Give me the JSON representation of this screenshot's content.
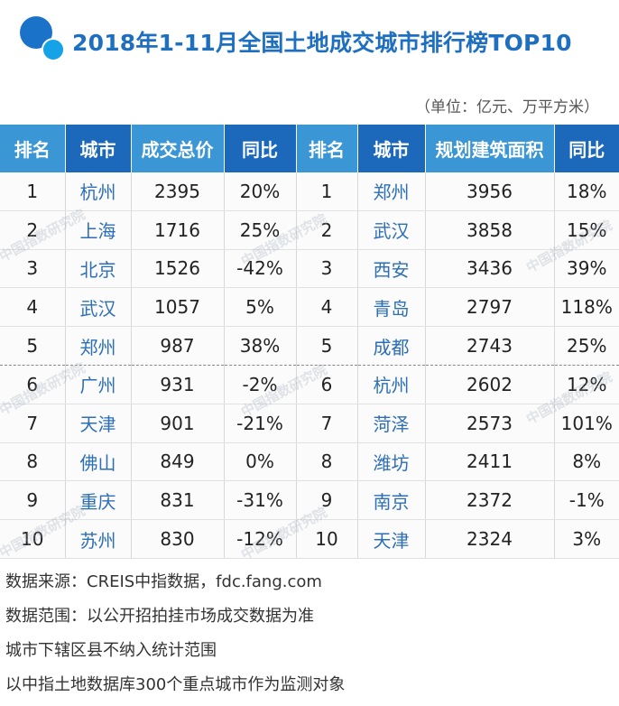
{
  "title": "2018年1-11月全国土地成交城市排行榜TOP10",
  "unit": "（单位：亿元、万平方米）",
  "headers": {
    "rank_left": "排名",
    "city_left": "城市",
    "value_left": "成交总价",
    "yoy_left": "同比",
    "rank_right": "排名",
    "city_right": "城市",
    "value_right": "规划建筑面积",
    "yoy_right": "同比"
  },
  "rows": [
    {
      "rank_l": "1",
      "city_l": "杭州",
      "val_l": "2395",
      "yoy_l": "20%",
      "rank_r": "1",
      "city_r": "郑州",
      "val_r": "3956",
      "yoy_r": "18%"
    },
    {
      "rank_l": "2",
      "city_l": "上海",
      "val_l": "1716",
      "yoy_l": "25%",
      "rank_r": "2",
      "city_r": "武汉",
      "val_r": "3858",
      "yoy_r": "15%"
    },
    {
      "rank_l": "3",
      "city_l": "北京",
      "val_l": "1526",
      "yoy_l": "-42%",
      "rank_r": "3",
      "city_r": "西安",
      "val_r": "3436",
      "yoy_r": "39%"
    },
    {
      "rank_l": "4",
      "city_l": "武汉",
      "val_l": "1057",
      "yoy_l": "5%",
      "rank_r": "4",
      "city_r": "青岛",
      "val_r": "2797",
      "yoy_r": "118%"
    },
    {
      "rank_l": "5",
      "city_l": "郑州",
      "val_l": "987",
      "yoy_l": "38%",
      "rank_r": "5",
      "city_r": "成都",
      "val_r": "2743",
      "yoy_r": "25%"
    },
    {
      "rank_l": "6",
      "city_l": "广州",
      "val_l": "931",
      "yoy_l": "-2%",
      "rank_r": "6",
      "city_r": "杭州",
      "val_r": "2602",
      "yoy_r": "12%"
    },
    {
      "rank_l": "7",
      "city_l": "天津",
      "val_l": "901",
      "yoy_l": "-21%",
      "rank_r": "7",
      "city_r": "菏泽",
      "val_r": "2573",
      "yoy_r": "101%"
    },
    {
      "rank_l": "8",
      "city_l": "佛山",
      "val_l": "849",
      "yoy_l": "0%",
      "rank_r": "8",
      "city_r": "潍坊",
      "val_r": "2411",
      "yoy_r": "8%"
    },
    {
      "rank_l": "9",
      "city_l": "重庆",
      "val_l": "831",
      "yoy_l": "-31%",
      "rank_r": "9",
      "city_r": "南京",
      "val_r": "2372",
      "yoy_r": "-1%"
    },
    {
      "rank_l": "10",
      "city_l": "苏州",
      "val_l": "830",
      "yoy_l": "-12%",
      "rank_r": "10",
      "city_r": "天津",
      "val_r": "2324",
      "yoy_r": "3%"
    }
  ],
  "watermark": "中国指数研究院",
  "footer": [
    "数据来源：CREIS中指数据，fdc.fang.com",
    "数据范围：以公开招拍挂市场成交数据为准",
    "城市下辖区县不纳入统计范围",
    "以中指土地数据库300个重点城市作为监测对象"
  ]
}
